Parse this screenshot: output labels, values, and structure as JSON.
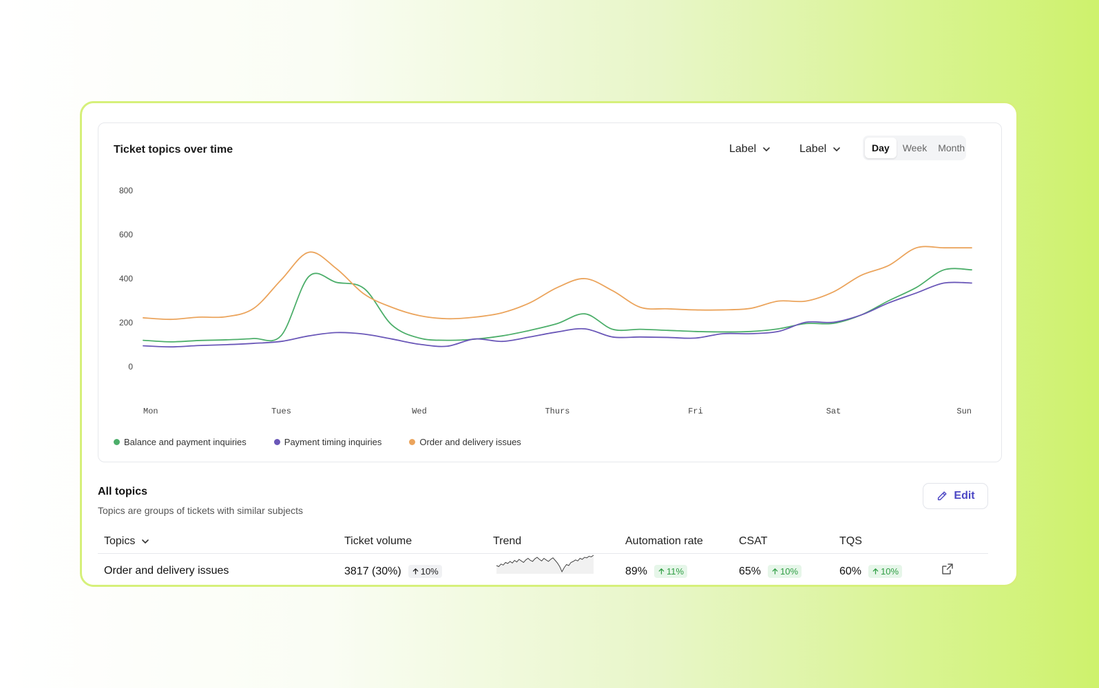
{
  "chart": {
    "title": "Ticket topics over time",
    "dropdown1": "Label",
    "dropdown2": "Label",
    "tabs": [
      "Day",
      "Week",
      "Month"
    ],
    "active_tab": "Day"
  },
  "chart_data": {
    "type": "line",
    "categories": [
      "Mon",
      "Tues",
      "Wed",
      "Thurs",
      "Fri",
      "Sat",
      "Sun"
    ],
    "ylim": [
      0,
      800
    ],
    "yticks": [
      0,
      200,
      400,
      600,
      800
    ],
    "x": [
      0,
      0.2,
      0.4,
      0.6,
      0.8,
      1.0,
      1.2,
      1.4,
      1.6,
      1.8,
      2.0,
      2.2,
      2.4,
      2.6,
      2.8,
      3.0,
      3.2,
      3.4,
      3.6,
      3.8,
      4.0,
      4.2,
      4.4,
      4.6,
      4.8,
      5.0,
      5.2,
      5.4,
      5.6,
      5.8,
      6.0
    ],
    "series": [
      {
        "name": "Balance and payment inquiries",
        "color": "#4cae6a",
        "values": [
          120,
          113,
          119,
          122,
          128,
          142,
          410,
          383,
          355,
          190,
          130,
          120,
          125,
          140,
          165,
          196,
          240,
          170,
          170,
          165,
          160,
          158,
          160,
          172,
          196,
          197,
          235,
          300,
          360,
          440,
          440
        ]
      },
      {
        "name": "Payment timing inquiries",
        "color": "#6a57b8",
        "values": [
          95,
          90,
          96,
          100,
          106,
          115,
          140,
          155,
          148,
          126,
          102,
          93,
          126,
          115,
          135,
          158,
          172,
          135,
          135,
          133,
          130,
          150,
          150,
          160,
          202,
          202,
          235,
          290,
          335,
          380,
          380
        ]
      },
      {
        "name": "Order and delivery issues",
        "color": "#eba45c",
        "values": [
          222,
          215,
          225,
          227,
          265,
          395,
          520,
          445,
          330,
          270,
          232,
          218,
          225,
          245,
          290,
          360,
          400,
          345,
          270,
          263,
          258,
          258,
          265,
          298,
          298,
          340,
          415,
          460,
          540,
          540,
          540
        ]
      }
    ]
  },
  "topics": {
    "title": "All topics",
    "subtitle": "Topics are groups of tickets with similar subjects",
    "edit_label": "Edit",
    "columns": {
      "topics": "Topics",
      "volume": "Ticket volume",
      "trend": "Trend",
      "automation": "Automation rate",
      "csat": "CSAT",
      "tqs": "TQS"
    },
    "rows": [
      {
        "name": "Order and delivery issues",
        "volume": "3817 (30%)",
        "volume_change": "10%",
        "automation": "89%",
        "automation_change": "11%",
        "csat": "65%",
        "csat_change": "10%",
        "tqs": "60%",
        "tqs_change": "10%",
        "trend": [
          30,
          28,
          33,
          31,
          36,
          34,
          38,
          35,
          40,
          37,
          42,
          39,
          36,
          41,
          44,
          40,
          38,
          43,
          46,
          42,
          39,
          44,
          41,
          38,
          42,
          45,
          40,
          35,
          28,
          18,
          26,
          32,
          30,
          36,
          38,
          41,
          39,
          44,
          42,
          46,
          45,
          48,
          47,
          50
        ]
      }
    ]
  }
}
